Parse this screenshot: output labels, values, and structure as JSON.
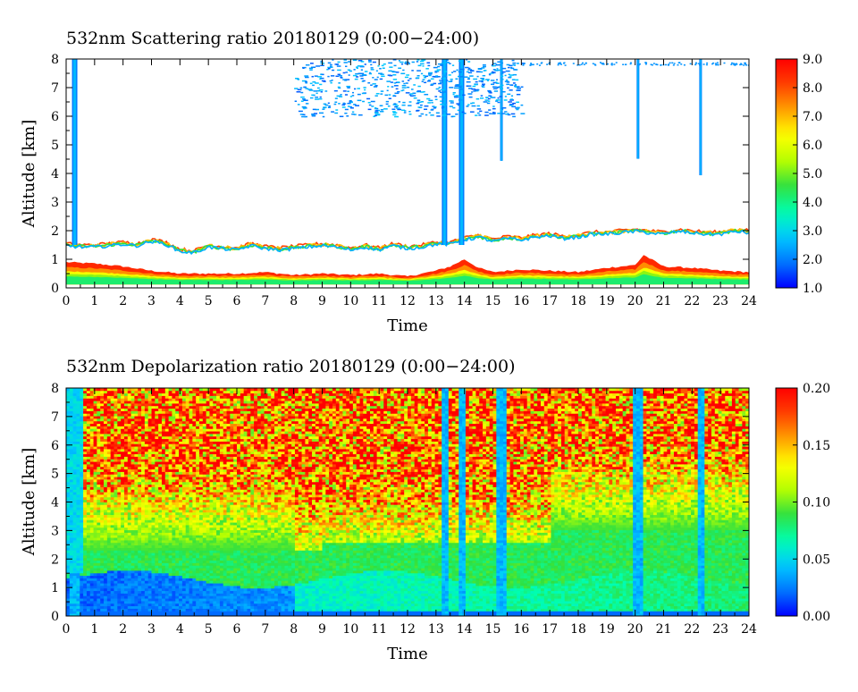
{
  "chart_data": [
    {
      "type": "heatmap",
      "title": "532nm Scattering ratio  20180129 (0:00−24:00)",
      "xlabel": "Time",
      "ylabel": "Altitude [km]",
      "xlim": [
        0,
        24
      ],
      "ylim": [
        0,
        8
      ],
      "x_ticks": [
        "0",
        "1",
        "2",
        "3",
        "4",
        "5",
        "6",
        "7",
        "8",
        "9",
        "10",
        "11",
        "12",
        "13",
        "14",
        "15",
        "16",
        "17",
        "18",
        "19",
        "20",
        "21",
        "22",
        "23",
        "24"
      ],
      "y_ticks": [
        "0",
        "1",
        "2",
        "3",
        "4",
        "5",
        "6",
        "7",
        "8"
      ],
      "colorbar": {
        "min": 1.0,
        "max": 9.0,
        "ticks": [
          "1.0",
          "2.0",
          "3.0",
          "4.0",
          "5.0",
          "6.0",
          "7.0",
          "8.0",
          "9.0"
        ]
      },
      "features": {
        "cloud_base_top_km": [
          [
            0.0,
            1.55
          ],
          [
            0.5,
            1.5
          ],
          [
            1.0,
            1.5
          ],
          [
            1.5,
            1.55
          ],
          [
            2.0,
            1.6
          ],
          [
            2.5,
            1.55
          ],
          [
            3.0,
            1.7
          ],
          [
            3.5,
            1.6
          ],
          [
            4.0,
            1.35
          ],
          [
            4.5,
            1.3
          ],
          [
            5.0,
            1.5
          ],
          [
            5.5,
            1.45
          ],
          [
            6.0,
            1.4
          ],
          [
            6.5,
            1.55
          ],
          [
            7.0,
            1.45
          ],
          [
            7.5,
            1.4
          ],
          [
            8.0,
            1.45
          ],
          [
            8.5,
            1.5
          ],
          [
            9.0,
            1.55
          ],
          [
            9.5,
            1.5
          ],
          [
            10.0,
            1.4
          ],
          [
            10.5,
            1.5
          ],
          [
            11.0,
            1.4
          ],
          [
            11.5,
            1.55
          ],
          [
            12.0,
            1.45
          ],
          [
            12.5,
            1.5
          ],
          [
            13.0,
            1.6
          ],
          [
            13.5,
            1.6
          ],
          [
            14.0,
            1.75
          ],
          [
            14.5,
            1.85
          ],
          [
            15.0,
            1.7
          ],
          [
            15.5,
            1.8
          ],
          [
            16.0,
            1.75
          ],
          [
            16.5,
            1.85
          ],
          [
            17.0,
            1.9
          ],
          [
            17.5,
            1.8
          ],
          [
            18.0,
            1.85
          ],
          [
            18.5,
            1.95
          ],
          [
            19.0,
            1.95
          ],
          [
            19.5,
            2.0
          ],
          [
            20.0,
            2.05
          ],
          [
            20.5,
            2.0
          ],
          [
            21.0,
            1.95
          ],
          [
            21.5,
            2.05
          ],
          [
            22.0,
            2.0
          ],
          [
            22.5,
            1.95
          ],
          [
            23.0,
            1.95
          ],
          [
            23.5,
            2.05
          ],
          [
            24.0,
            2.0
          ]
        ],
        "boundary_layer_top_km": [
          [
            0.0,
            0.9
          ],
          [
            1.0,
            0.85
          ],
          [
            2.0,
            0.75
          ],
          [
            3.0,
            0.6
          ],
          [
            4.0,
            0.5
          ],
          [
            5.0,
            0.5
          ],
          [
            6.0,
            0.5
          ],
          [
            7.0,
            0.55
          ],
          [
            8.0,
            0.45
          ],
          [
            9.0,
            0.5
          ],
          [
            10.0,
            0.45
          ],
          [
            11.0,
            0.5
          ],
          [
            12.0,
            0.4
          ],
          [
            13.0,
            0.6
          ],
          [
            13.5,
            0.75
          ],
          [
            14.0,
            1.0
          ],
          [
            14.5,
            0.7
          ],
          [
            15.0,
            0.55
          ],
          [
            16.0,
            0.65
          ],
          [
            17.0,
            0.6
          ],
          [
            18.0,
            0.55
          ],
          [
            19.0,
            0.7
          ],
          [
            20.0,
            0.8
          ],
          [
            20.3,
            1.15
          ],
          [
            21.0,
            0.75
          ],
          [
            22.0,
            0.7
          ],
          [
            23.0,
            0.6
          ],
          [
            24.0,
            0.55
          ]
        ],
        "upper_cloud_columns_hr": [
          0.3,
          13.3,
          13.9,
          15.3,
          20.1,
          22.3
        ]
      }
    },
    {
      "type": "heatmap",
      "title": "532nm Depolarization ratio  20180129 (0:00−24:00)",
      "xlabel": "Time",
      "ylabel": "Altitude [km]",
      "xlim": [
        0,
        24
      ],
      "ylim": [
        0,
        8
      ],
      "x_ticks": [
        "0",
        "1",
        "2",
        "3",
        "4",
        "5",
        "6",
        "7",
        "8",
        "9",
        "10",
        "11",
        "12",
        "13",
        "14",
        "15",
        "16",
        "17",
        "18",
        "19",
        "20",
        "21",
        "22",
        "23",
        "24"
      ],
      "y_ticks": [
        "0",
        "1",
        "2",
        "3",
        "4",
        "5",
        "6",
        "7",
        "8"
      ],
      "colorbar": {
        "min": 0.0,
        "max": 0.2,
        "ticks": [
          "0.00",
          "0.05",
          "0.10",
          "0.15",
          "0.20"
        ]
      }
    }
  ],
  "colors": {
    "colormap": [
      "#0000ff",
      "#0077ff",
      "#00c8ff",
      "#00ffb0",
      "#30e040",
      "#b8ff00",
      "#ffff00",
      "#ffa000",
      "#ff4000",
      "#ff0000"
    ]
  }
}
